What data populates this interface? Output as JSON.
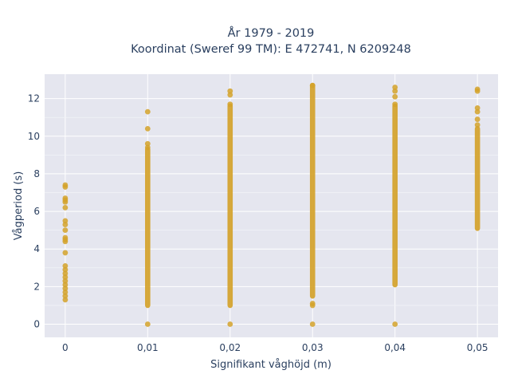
{
  "chart_data": {
    "type": "scatter",
    "title_line1": "År 1979 - 2019",
    "title_line2": "Koordinat (Sweref 99 TM): E 472741, N 6209248",
    "xlabel": "Signifikant våghöjd (m)",
    "ylabel": "Vågperiod (s)",
    "x_ticks": [
      0,
      0.01,
      0.02,
      0.03,
      0.04,
      0.05
    ],
    "x_tick_labels": [
      "0",
      "0,01",
      "0,02",
      "0,03",
      "0,04",
      "0,05"
    ],
    "y_ticks": [
      0,
      2,
      4,
      6,
      8,
      10,
      12
    ],
    "y_tick_labels": [
      "0",
      "2",
      "4",
      "6",
      "8",
      "10",
      "12"
    ],
    "xlim": [
      -0.0025,
      0.0525
    ],
    "ylim": [
      -0.7,
      13.3
    ],
    "grid": true,
    "marker_color": "#d4a22a",
    "plot_bg": "#e5e6ef",
    "series": [
      {
        "values": [
          {
            "x": 0,
            "y": 7.4
          },
          {
            "x": 0,
            "y": 7.3
          },
          {
            "x": 0,
            "y": 6.7
          },
          {
            "x": 0,
            "y": 6.6
          },
          {
            "x": 0,
            "y": 6.5
          },
          {
            "x": 0,
            "y": 6.2
          },
          {
            "x": 0,
            "y": 5.5
          },
          {
            "x": 0,
            "y": 5.3
          },
          {
            "x": 0,
            "y": 5.0
          },
          {
            "x": 0,
            "y": 4.6
          },
          {
            "x": 0,
            "y": 4.5
          },
          {
            "x": 0,
            "y": 4.4
          },
          {
            "x": 0,
            "y": 3.8
          },
          {
            "x": 0,
            "y": 3.1
          },
          {
            "x": 0,
            "y": 2.9
          },
          {
            "x": 0,
            "y": 2.7
          },
          {
            "x": 0,
            "y": 2.5
          },
          {
            "x": 0,
            "y": 2.3
          },
          {
            "x": 0,
            "y": 2.1
          },
          {
            "x": 0,
            "y": 1.9
          },
          {
            "x": 0,
            "y": 1.7
          },
          {
            "x": 0,
            "y": 1.5
          },
          {
            "x": 0,
            "y": 1.3
          },
          {
            "x": 0.01,
            "y": 11.3
          },
          {
            "x": 0.01,
            "y": 10.4
          },
          {
            "x": 0.01,
            "y": 9.6
          },
          {
            "x": 0.01,
            "y": 9.4
          },
          {
            "x": 0.01,
            "y": 0
          },
          {
            "x": 0.02,
            "y": 12.4
          },
          {
            "x": 0.02,
            "y": 12.2
          },
          {
            "x": 0.02,
            "y": 11.7
          },
          {
            "x": 0.02,
            "y": 0
          },
          {
            "x": 0.03,
            "y": 12.7
          },
          {
            "x": 0.03,
            "y": 1.1
          },
          {
            "x": 0.03,
            "y": 1.0
          },
          {
            "x": 0.03,
            "y": 0
          },
          {
            "x": 0.04,
            "y": 12.6
          },
          {
            "x": 0.04,
            "y": 12.4
          },
          {
            "x": 0.04,
            "y": 12.1
          },
          {
            "x": 0.04,
            "y": 11.7
          },
          {
            "x": 0.04,
            "y": 0
          },
          {
            "x": 0.05,
            "y": 12.5
          },
          {
            "x": 0.05,
            "y": 12.4
          },
          {
            "x": 0.05,
            "y": 11.5
          },
          {
            "x": 0.05,
            "y": 11.3
          },
          {
            "x": 0.05,
            "y": 10.9
          },
          {
            "x": 0.05,
            "y": 10.6
          }
        ],
        "ranges": [
          {
            "x": 0.01,
            "y_min": 1.0,
            "y_max": 9.3
          },
          {
            "x": 0.02,
            "y_min": 1.0,
            "y_max": 11.6
          },
          {
            "x": 0.03,
            "y_min": 1.5,
            "y_max": 12.7
          },
          {
            "x": 0.04,
            "y_min": 2.1,
            "y_max": 11.6
          },
          {
            "x": 0.05,
            "y_min": 5.1,
            "y_max": 10.4
          }
        ]
      }
    ]
  }
}
